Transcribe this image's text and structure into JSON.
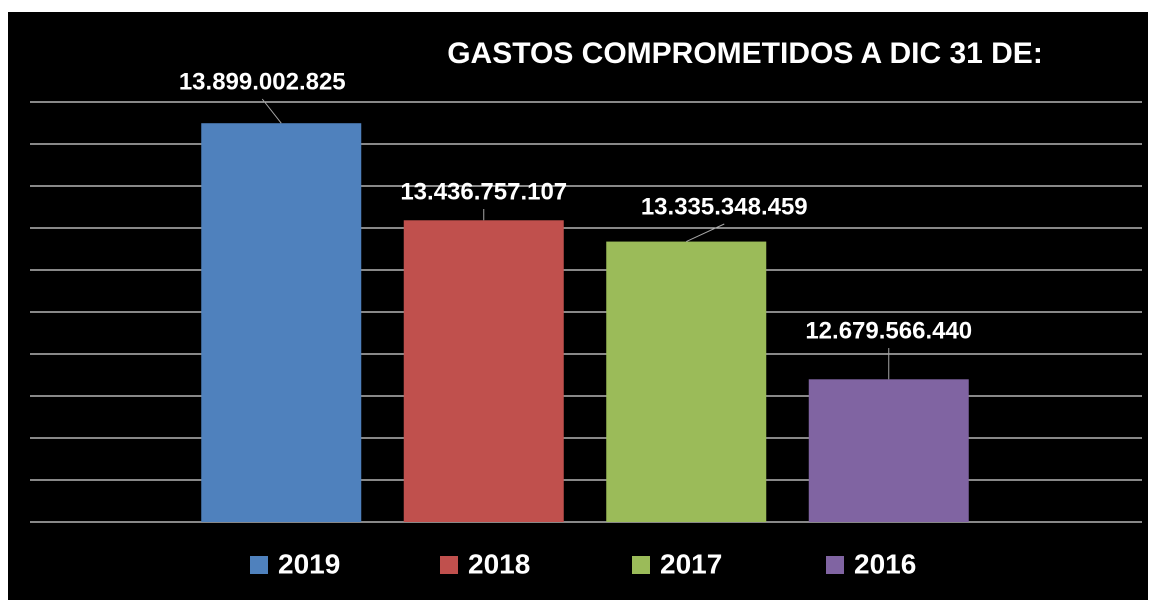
{
  "chart_data": {
    "type": "bar",
    "title": "GASTOS COMPROMETIDOS A DIC 31 DE:",
    "categories": [
      "2019",
      "2018",
      "2017",
      "2016"
    ],
    "values": [
      13899002825,
      13436757107,
      13335348459,
      12679566440
    ],
    "value_labels": [
      "13.899.002.825",
      "13.436.757.107",
      "13.335.348.459",
      "12.679.566.440"
    ],
    "colors": [
      "#4f81bd",
      "#c0504d",
      "#9bbb59",
      "#8064a2"
    ],
    "ylim": [
      12000000000,
      14000000000
    ],
    "yticks": [
      12000000000,
      12200000000,
      12400000000,
      12600000000,
      12800000000,
      13000000000,
      13200000000,
      13400000000,
      13600000000,
      13800000000,
      14000000000
    ],
    "grid": true
  }
}
